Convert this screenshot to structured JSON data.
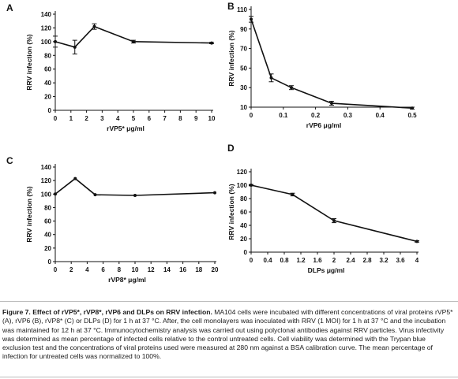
{
  "chart_data": [
    {
      "panel": "A",
      "type": "line",
      "xlabel": "rVP5* μg/ml",
      "ylabel": "RRV infection (%)",
      "xlim": [
        0,
        10
      ],
      "ylim": [
        0,
        140
      ],
      "xticks": [
        "0",
        "1",
        "2",
        "3",
        "4",
        "5",
        "6",
        "7",
        "8",
        "9",
        "10"
      ],
      "yticks": [
        "0",
        "20",
        "40",
        "60",
        "80",
        "100",
        "120",
        "140"
      ],
      "x": [
        0,
        1.25,
        2.5,
        5,
        10
      ],
      "y": [
        100,
        92,
        122,
        100,
        98
      ],
      "errors": [
        8,
        10,
        4,
        2,
        1
      ]
    },
    {
      "panel": "B",
      "type": "line",
      "xlabel": "rVP6 μg/ml",
      "ylabel": "RRV infection (%)",
      "xlim": [
        0,
        0.5
      ],
      "ylim": [
        10,
        110
      ],
      "xticks": [
        "0",
        "0.1",
        "0.2",
        "0.3",
        "0.4",
        "0.5"
      ],
      "yticks": [
        "10",
        "30",
        "50",
        "70",
        "90",
        "110"
      ],
      "x": [
        0,
        0.0625,
        0.125,
        0.25,
        0.5
      ],
      "y": [
        100,
        40,
        30,
        14,
        9
      ],
      "errors": [
        3,
        4,
        2,
        2,
        1
      ]
    },
    {
      "panel": "C",
      "type": "line",
      "xlabel": "rVP8* μg/ml",
      "ylabel": "RRV infection (%)",
      "xlim": [
        0,
        20
      ],
      "ylim": [
        0,
        140
      ],
      "xticks": [
        "0",
        "2",
        "4",
        "6",
        "8",
        "10",
        "12",
        "14",
        "16",
        "18",
        "20"
      ],
      "yticks": [
        "0",
        "20",
        "40",
        "60",
        "80",
        "100",
        "120",
        "140"
      ],
      "x": [
        0,
        2.5,
        5,
        10,
        20
      ],
      "y": [
        100,
        123,
        99,
        98,
        102
      ],
      "errors": [
        0,
        0,
        0,
        0,
        0
      ]
    },
    {
      "panel": "D",
      "type": "line",
      "xlabel": "DLPs μg/ml",
      "ylabel": "RRV infection (%)",
      "xlim": [
        0,
        4
      ],
      "ylim": [
        0,
        120
      ],
      "xticks": [
        "0",
        "0.4",
        "0.8",
        "1.2",
        "1.6",
        "2",
        "2.4",
        "2.8",
        "3.2",
        "3.6",
        "4"
      ],
      "yticks": [
        "0",
        "20",
        "40",
        "60",
        "80",
        "100",
        "120"
      ],
      "x": [
        0,
        1,
        2,
        4
      ],
      "y": [
        100,
        86,
        47,
        16
      ],
      "errors": [
        1,
        2,
        3,
        1
      ]
    }
  ],
  "caption": {
    "title": "Figure 7. Effect of rVP5*, rVP8*, rVP6 and DLPs on RRV infection.",
    "body": "MA104 cells were incubated with different concentrations of viral proteins rVP5* (A), rVP6 (B), rVP8* (C) or DLPs (D) for 1 h at 37 °C. After, the cell monolayers was inoculated with RRV (1 MOI) for 1 h at 37 °C and the incubation was maintained for 12 h at 37 °C. Immunocytochemistry analysis was carried out using polyclonal antibodies against RRV particles. Virus infectivity was determined as mean percentage of infected cells relative to the control untreated cells. Cell viability was determined with the Trypan blue exclusion test and the concentrations of viral proteins used were measured at 280 nm against a BSA calibration curve. The mean percentage of infection for untreated cells was normalized to 100%."
  }
}
